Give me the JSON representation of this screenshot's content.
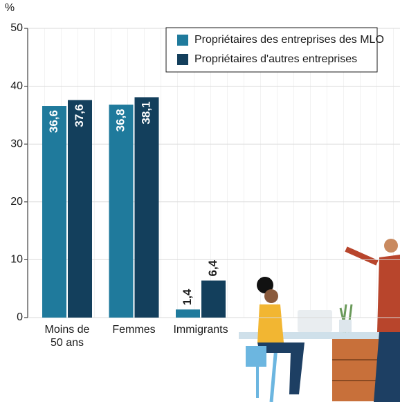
{
  "chart_data": {
    "type": "bar",
    "y_label": "%",
    "categories": [
      "Moins de 50 ans",
      "Femmes",
      "Immigrants"
    ],
    "series": [
      {
        "name": "Propriétaires des entreprises des MLO",
        "color": "#1f7a9c",
        "values": [
          36.6,
          36.8,
          1.4
        ],
        "value_labels": [
          "36,6",
          "36,8",
          "1,4"
        ]
      },
      {
        "name": "Propriétaires d'autres entreprises",
        "color": "#133f5c",
        "values": [
          37.6,
          38.1,
          6.4
        ],
        "value_labels": [
          "37,6",
          "38,1",
          "6,4"
        ]
      }
    ],
    "ylim": [
      0,
      50
    ],
    "yticks": [
      0,
      10,
      20,
      30,
      40,
      50
    ],
    "grid": true,
    "legend": "top-right"
  }
}
